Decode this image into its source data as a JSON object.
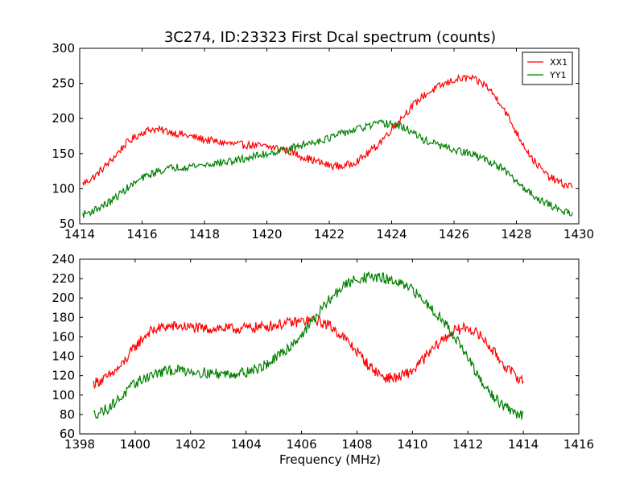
{
  "chart_data": [
    {
      "type": "line",
      "title": "3C274, ID:23323 First Dcal spectrum (counts)",
      "xlabel": "",
      "ylabel": "",
      "xlim": [
        1414,
        1430
      ],
      "ylim": [
        50,
        300
      ],
      "xticks": [
        "1414",
        "1416",
        "1418",
        "1420",
        "1422",
        "1424",
        "1426",
        "1428",
        "1430"
      ],
      "yticks": [
        "50",
        "100",
        "150",
        "200",
        "250",
        "300"
      ],
      "grid": false,
      "legend": "top-right",
      "series": [
        {
          "name": "XX1",
          "color": "#ff0000",
          "x": [
            1414.1,
            1414.5,
            1415.0,
            1415.5,
            1416.0,
            1416.3,
            1416.8,
            1417.5,
            1418.0,
            1418.5,
            1419.0,
            1419.5,
            1420.0,
            1420.5,
            1421.0,
            1421.5,
            1422.0,
            1422.5,
            1423.0,
            1423.5,
            1424.0,
            1424.5,
            1425.0,
            1425.5,
            1426.0,
            1426.5,
            1427.0,
            1427.5,
            1428.0,
            1428.5,
            1429.0,
            1429.5,
            1429.8
          ],
          "y": [
            107,
            118,
            140,
            165,
            180,
            185,
            182,
            175,
            170,
            166,
            163,
            162,
            160,
            157,
            148,
            140,
            133,
            132,
            142,
            160,
            185,
            210,
            232,
            245,
            255,
            258,
            248,
            222,
            180,
            143,
            118,
            106,
            104
          ]
        },
        {
          "name": "YY1",
          "color": "#008000",
          "x": [
            1414.1,
            1414.5,
            1415.0,
            1415.5,
            1416.0,
            1416.5,
            1417.0,
            1417.5,
            1418.0,
            1418.5,
            1419.0,
            1419.5,
            1420.0,
            1420.5,
            1421.0,
            1421.5,
            1422.0,
            1422.5,
            1423.0,
            1423.5,
            1424.0,
            1424.5,
            1425.0,
            1425.5,
            1426.0,
            1426.5,
            1427.0,
            1427.5,
            1428.0,
            1428.5,
            1429.0,
            1429.5,
            1429.8
          ],
          "y": [
            63,
            70,
            82,
            100,
            115,
            125,
            130,
            132,
            134,
            137,
            140,
            145,
            150,
            155,
            160,
            167,
            172,
            180,
            186,
            192,
            193,
            185,
            170,
            162,
            155,
            150,
            142,
            130,
            110,
            92,
            78,
            68,
            66
          ]
        }
      ]
    },
    {
      "type": "line",
      "title": "",
      "xlabel": "Frequency (MHz)",
      "ylabel": "",
      "xlim": [
        1398,
        1416
      ],
      "ylim": [
        60,
        240
      ],
      "xticks": [
        "1398",
        "1400",
        "1402",
        "1404",
        "1406",
        "1408",
        "1410",
        "1412",
        "1414",
        "1416"
      ],
      "yticks": [
        "60",
        "80",
        "100",
        "120",
        "140",
        "160",
        "180",
        "200",
        "220",
        "240"
      ],
      "grid": false,
      "legend": "none",
      "series": [
        {
          "color": "#ff0000",
          "x": [
            1398.5,
            1399.0,
            1399.5,
            1400.0,
            1400.5,
            1401.0,
            1401.5,
            1402.0,
            1402.5,
            1403.0,
            1403.5,
            1404.0,
            1404.5,
            1405.0,
            1405.5,
            1406.0,
            1406.5,
            1407.0,
            1407.5,
            1408.0,
            1408.5,
            1409.0,
            1409.5,
            1410.0,
            1410.5,
            1411.0,
            1411.5,
            1412.0,
            1412.5,
            1413.0,
            1413.5,
            1414.0
          ],
          "y": [
            112,
            118,
            130,
            150,
            165,
            170,
            171,
            170,
            168,
            169,
            168,
            169,
            170,
            172,
            174,
            176,
            177,
            172,
            160,
            145,
            128,
            118,
            118,
            125,
            140,
            155,
            166,
            170,
            160,
            142,
            125,
            114
          ]
        },
        {
          "color": "#008000",
          "x": [
            1398.5,
            1399.0,
            1399.5,
            1400.0,
            1400.5,
            1401.0,
            1401.5,
            1402.0,
            1402.5,
            1403.0,
            1403.5,
            1404.0,
            1404.5,
            1405.0,
            1405.5,
            1406.0,
            1406.5,
            1407.0,
            1407.5,
            1408.0,
            1408.5,
            1409.0,
            1409.5,
            1410.0,
            1410.5,
            1411.0,
            1411.5,
            1412.0,
            1412.5,
            1413.0,
            1413.5,
            1414.0
          ],
          "y": [
            80,
            86,
            98,
            112,
            120,
            124,
            126,
            125,
            123,
            122,
            122,
            124,
            128,
            136,
            148,
            162,
            180,
            198,
            212,
            220,
            222,
            220,
            215,
            208,
            195,
            180,
            162,
            138,
            112,
            96,
            84,
            78
          ]
        }
      ]
    }
  ]
}
